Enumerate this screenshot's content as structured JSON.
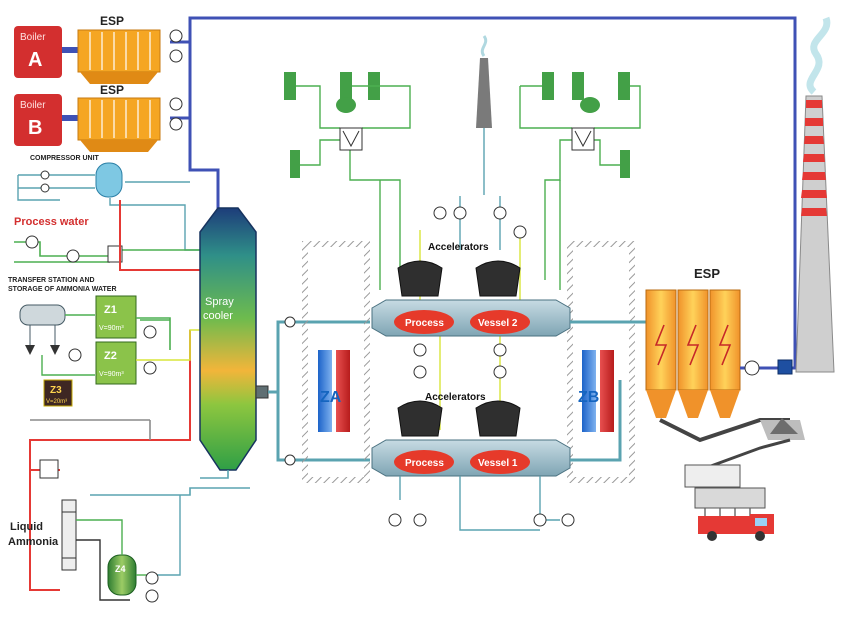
{
  "boilers": [
    {
      "caption": "Boiler",
      "letter": "A"
    },
    {
      "caption": "Boiler",
      "letter": "B"
    }
  ],
  "esp_small": [
    "ESP",
    "ESP"
  ],
  "esp_big": "ESP",
  "compressor_unit": "COMPRESSOR UNIT",
  "process_water": "Process water",
  "transfer_station": [
    "TRANSFER STATION AND",
    "STORAGE OF AMMONIA WATER"
  ],
  "liquid_ammonia": [
    "Liquid",
    "Ammonia"
  ],
  "spray_cooler": [
    "Spray",
    "cooler"
  ],
  "accelerators": [
    "Accelerators",
    "Accelerators"
  ],
  "vessel2": [
    "Process",
    "Vessel 2"
  ],
  "vessel1": [
    "Process",
    "Vessel 1"
  ],
  "za": "ZA",
  "zb": "ZB",
  "tanks": [
    {
      "name": "Z1",
      "sub": "V=90m³"
    },
    {
      "name": "Z2",
      "sub": "V=90m³"
    },
    {
      "name": "Z3",
      "sub": "V=20m³"
    },
    {
      "name": "Z4",
      "sub": ""
    }
  ],
  "colors": {
    "boiler": "#d32f2f",
    "esp_orange": "#f5a623",
    "pipe_blue": "#3f51b5",
    "pipe_teal": "#5aa3b0",
    "pipe_green": "#4caf50",
    "pipe_red": "#e53935",
    "pipe_gray": "#8a8a8a",
    "vessel_red": "#e63a2a",
    "accent_yellow": "#d8e53a"
  }
}
